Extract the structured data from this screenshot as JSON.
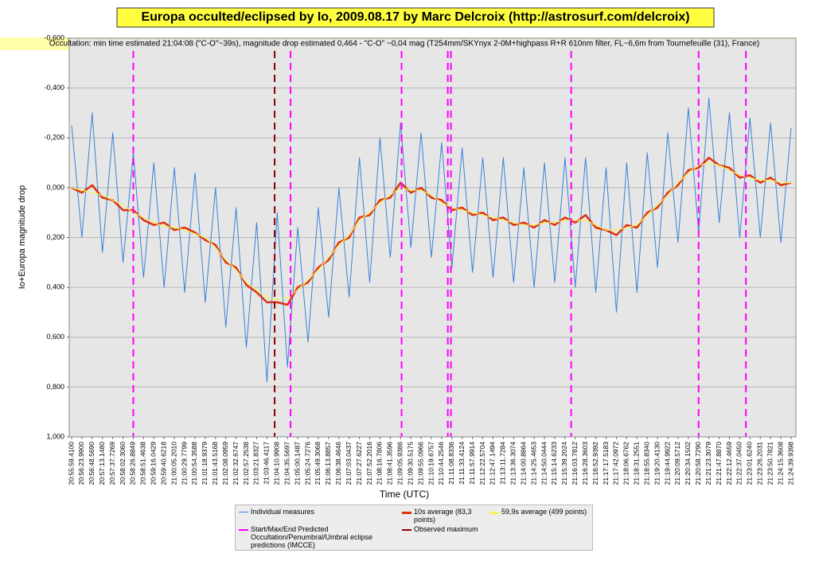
{
  "chart_data": {
    "type": "line",
    "title": "Europa occulted/eclipsed by Io, 2009.08.17 by Marc Delcroix (http://astrosurf.com/delcroix)",
    "subtitle": "Occultation: min time estimated 21:04:08 (\"C-O\"~39s), magnitude drop estimated 0,464 - \"C-O\" ~0,04 mag (T254mm/SKYnyx 2-0M+highpass R+R 610nm filter, FL~6,6m from Tournefeuille (31), France)",
    "x_label": "Time (UTC)",
    "y_label": "Io+Europa magnitude drop",
    "categories": [
      "20:55:59.4100",
      "20:56:23.9900",
      "20:56:48.5690",
      "20:57:13.1480",
      "20:57:37.7269",
      "20:58:02.3060",
      "20:58:26.8849",
      "20:58:51.4638",
      "20:59:16.0429",
      "20:59:40.6218",
      "21:00:05.2010",
      "21:00:29.7799",
      "21:00:54.3588",
      "21:01:18.9379",
      "21:01:43.5168",
      "21:02:08.0959",
      "21:02:32.6747",
      "21:02:57.2538",
      "21:03:21.8327",
      "21:03:46.4117",
      "21:04:10.9908",
      "21:04:35.5697",
      "21:05:00.1487",
      "21:05:24.7276",
      "21:05:49.3068",
      "21:06:13.8857",
      "21:06:38.4646",
      "21:07:03.0437",
      "21:07:27.6227",
      "21:07:52.2016",
      "21:08:16.7806",
      "21:08:41.3596",
      "21:09:05.9386",
      "21:09:30.5175",
      "21:09:55.0966",
      "21:10:19.6757",
      "21:10:44.2546",
      "21:11:08.8336",
      "21:11:33.4124",
      "21:11:57.9914",
      "21:12:22.5704",
      "21:12:47.1494",
      "21:13:11.7284",
      "21:13:36.3074",
      "21:14:00.8864",
      "21:14:25.4653",
      "21:14:50.0444",
      "21:15:14.6233",
      "21:15:39.2024",
      "21:16:03.7812",
      "21:16:28.3603",
      "21:16:52.9392",
      "21:17:17.5183",
      "21:17:42.0972",
      "21:18:06.6762",
      "21:18:31.2551",
      "21:18:55.8340",
      "21:19:20.4130",
      "21:19:44.9922",
      "21:20:09.5712",
      "21:20:34.1502",
      "21:20:58.7290",
      "21:21:23.3079",
      "21:21:47.8870",
      "21:22:12.4659",
      "21:22:37.0450",
      "21:23:01.6240",
      "21:23:26.2031",
      "21:23:50.7821",
      "21:24:15.3608",
      "21:24:39.9398"
    ],
    "series": [
      {
        "name": "Individual measures",
        "color": "#3a82d8",
        "width": 1,
        "values": [
          -0.25,
          0.2,
          -0.3,
          0.26,
          -0.22,
          0.3,
          -0.14,
          0.36,
          -0.1,
          0.4,
          -0.08,
          0.42,
          -0.06,
          0.46,
          0.0,
          0.56,
          0.08,
          0.64,
          0.14,
          0.78,
          0.1,
          0.72,
          0.16,
          0.62,
          0.08,
          0.52,
          0.0,
          0.44,
          -0.12,
          0.38,
          -0.2,
          0.28,
          -0.26,
          0.24,
          -0.22,
          0.28,
          -0.18,
          0.32,
          -0.16,
          0.34,
          -0.12,
          0.36,
          -0.12,
          0.38,
          -0.08,
          0.4,
          -0.1,
          0.38,
          -0.12,
          0.4,
          -0.12,
          0.42,
          -0.08,
          0.5,
          -0.1,
          0.42,
          -0.14,
          0.32,
          -0.22,
          0.22,
          -0.32,
          0.18,
          -0.36,
          0.14,
          -0.3,
          0.2,
          -0.28,
          0.2,
          -0.26,
          0.22,
          -0.24
        ]
      },
      {
        "name": "10s average (83,3 points)",
        "color": "#e0300e",
        "width": 2.5,
        "values": [
          0.0,
          0.02,
          -0.01,
          0.04,
          0.05,
          0.09,
          0.09,
          0.13,
          0.15,
          0.14,
          0.17,
          0.16,
          0.18,
          0.21,
          0.23,
          0.3,
          0.32,
          0.39,
          0.42,
          0.46,
          0.46,
          0.47,
          0.4,
          0.38,
          0.32,
          0.29,
          0.22,
          0.2,
          0.12,
          0.11,
          0.05,
          0.04,
          -0.02,
          0.02,
          0.0,
          0.04,
          0.05,
          0.09,
          0.08,
          0.11,
          0.1,
          0.13,
          0.12,
          0.15,
          0.14,
          0.16,
          0.13,
          0.15,
          0.12,
          0.14,
          0.11,
          0.16,
          0.17,
          0.19,
          0.15,
          0.16,
          0.1,
          0.08,
          0.02,
          -0.01,
          -0.07,
          -0.08,
          -0.12,
          -0.09,
          -0.08,
          -0.04,
          -0.05,
          -0.02,
          -0.04,
          -0.01,
          -0.02
        ]
      },
      {
        "name": "59,9s average (499 points)",
        "color": "#f4f45a",
        "width": 1.2,
        "values": [
          0.0,
          0.01,
          0.02,
          0.03,
          0.05,
          0.07,
          0.1,
          0.12,
          0.14,
          0.155,
          0.16,
          0.17,
          0.185,
          0.2,
          0.24,
          0.29,
          0.33,
          0.38,
          0.41,
          0.44,
          0.45,
          0.44,
          0.41,
          0.37,
          0.33,
          0.28,
          0.23,
          0.19,
          0.13,
          0.1,
          0.06,
          0.03,
          0.0,
          0.01,
          0.01,
          0.03,
          0.06,
          0.08,
          0.09,
          0.1,
          0.11,
          0.12,
          0.13,
          0.14,
          0.15,
          0.15,
          0.14,
          0.14,
          0.13,
          0.13,
          0.13,
          0.15,
          0.17,
          0.17,
          0.16,
          0.15,
          0.11,
          0.07,
          0.03,
          -0.02,
          -0.06,
          -0.09,
          -0.1,
          -0.09,
          -0.07,
          -0.05,
          -0.04,
          -0.03,
          -0.03,
          -0.02,
          -0.02
        ]
      }
    ],
    "vlines": [
      {
        "name": "Start/Max/End Predicted Occultation/Penumbral/Umbral eclipse predictions (IMCCE)",
        "color": "#ff00ff",
        "positions": [
          6,
          21.3,
          32.1,
          36.6,
          36.9,
          48.6,
          61,
          65.6
        ]
      },
      {
        "name": "Observed maximum",
        "color": "#8b0000",
        "positions": [
          19.75
        ]
      }
    ],
    "ylim": [
      -0.6,
      1.0
    ],
    "y_inverted": true,
    "yticks": [
      {
        "value": -0.6,
        "label": "-0,600"
      },
      {
        "value": -0.4,
        "label": "-0,400"
      },
      {
        "value": -0.2,
        "label": "-0,200"
      },
      {
        "value": 0,
        "label": "0,000"
      },
      {
        "value": 0.2,
        "label": "0,200"
      },
      {
        "value": 0.4,
        "label": "0,400"
      },
      {
        "value": 0.6,
        "label": "0,600"
      },
      {
        "value": 0.8,
        "label": "0,800"
      },
      {
        "value": 1.0,
        "label": "1,000"
      }
    ],
    "grid": true
  }
}
